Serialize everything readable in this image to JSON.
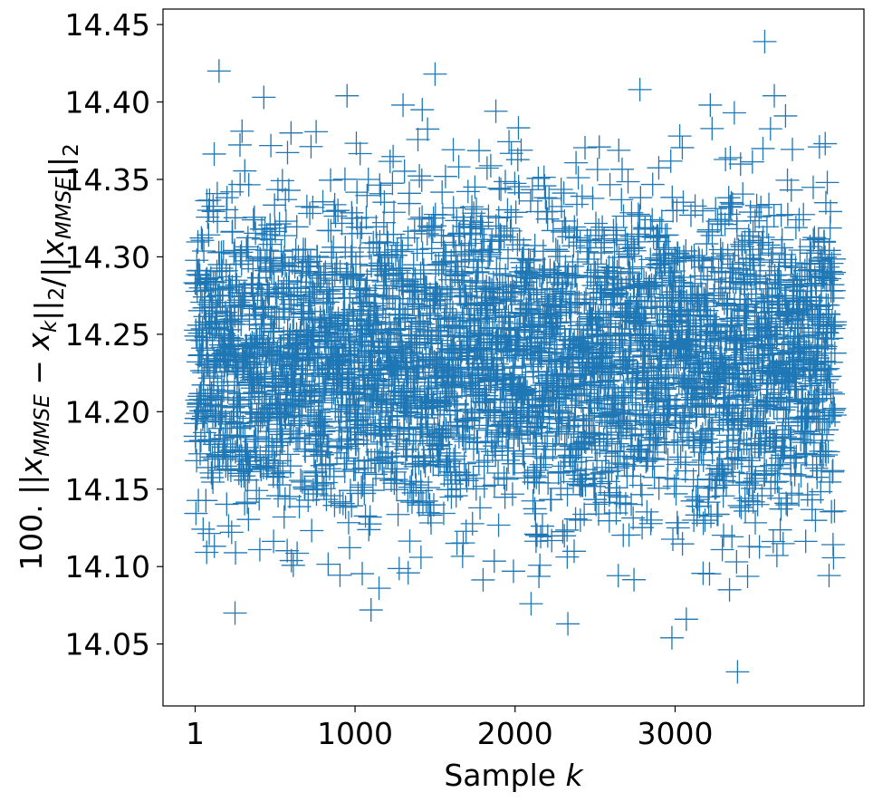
{
  "chart_data": {
    "type": "scatter",
    "title": "",
    "xlabel": "Sample k",
    "ylabel": "100. ||x_MMSE − x_k||_2/||x_MMSE||_2",
    "xlim": [
      -200,
      4180
    ],
    "ylim": [
      14.01,
      14.46
    ],
    "xticks": [
      1,
      1000,
      2000,
      3000
    ],
    "xtick_labels": [
      "1",
      "1000",
      "2000",
      "3000"
    ],
    "yticks": [
      14.05,
      14.1,
      14.15,
      14.2,
      14.25,
      14.3,
      14.35,
      14.4,
      14.45
    ],
    "ytick_labels": [
      "14.05",
      "14.10",
      "14.15",
      "14.20",
      "14.25",
      "14.30",
      "14.35",
      "14.40",
      "14.45"
    ],
    "grid": false,
    "legend": "none",
    "marker": "plus",
    "series_color": "#1f77b4",
    "n_samples": 4000,
    "mean": 14.235,
    "std": 0.052,
    "outliers": [
      {
        "x": 150,
        "y": 14.42
      },
      {
        "x": 250,
        "y": 14.07
      },
      {
        "x": 430,
        "y": 14.403
      },
      {
        "x": 600,
        "y": 14.38
      },
      {
        "x": 950,
        "y": 14.404
      },
      {
        "x": 1100,
        "y": 14.072
      },
      {
        "x": 1150,
        "y": 14.086
      },
      {
        "x": 1300,
        "y": 14.398
      },
      {
        "x": 1420,
        "y": 14.395
      },
      {
        "x": 1500,
        "y": 14.418
      },
      {
        "x": 1880,
        "y": 14.394
      },
      {
        "x": 2330,
        "y": 14.063
      },
      {
        "x": 2780,
        "y": 14.408
      },
      {
        "x": 2980,
        "y": 14.054
      },
      {
        "x": 3070,
        "y": 14.066
      },
      {
        "x": 3340,
        "y": 14.085
      },
      {
        "x": 3390,
        "y": 14.032
      },
      {
        "x": 3560,
        "y": 14.439
      },
      {
        "x": 3620,
        "y": 14.404
      },
      {
        "x": 3690,
        "y": 14.391
      },
      {
        "x": 3220,
        "y": 14.398
      },
      {
        "x": 3370,
        "y": 14.393
      },
      {
        "x": 2100,
        "y": 14.076
      },
      {
        "x": 1990,
        "y": 14.097
      }
    ]
  }
}
